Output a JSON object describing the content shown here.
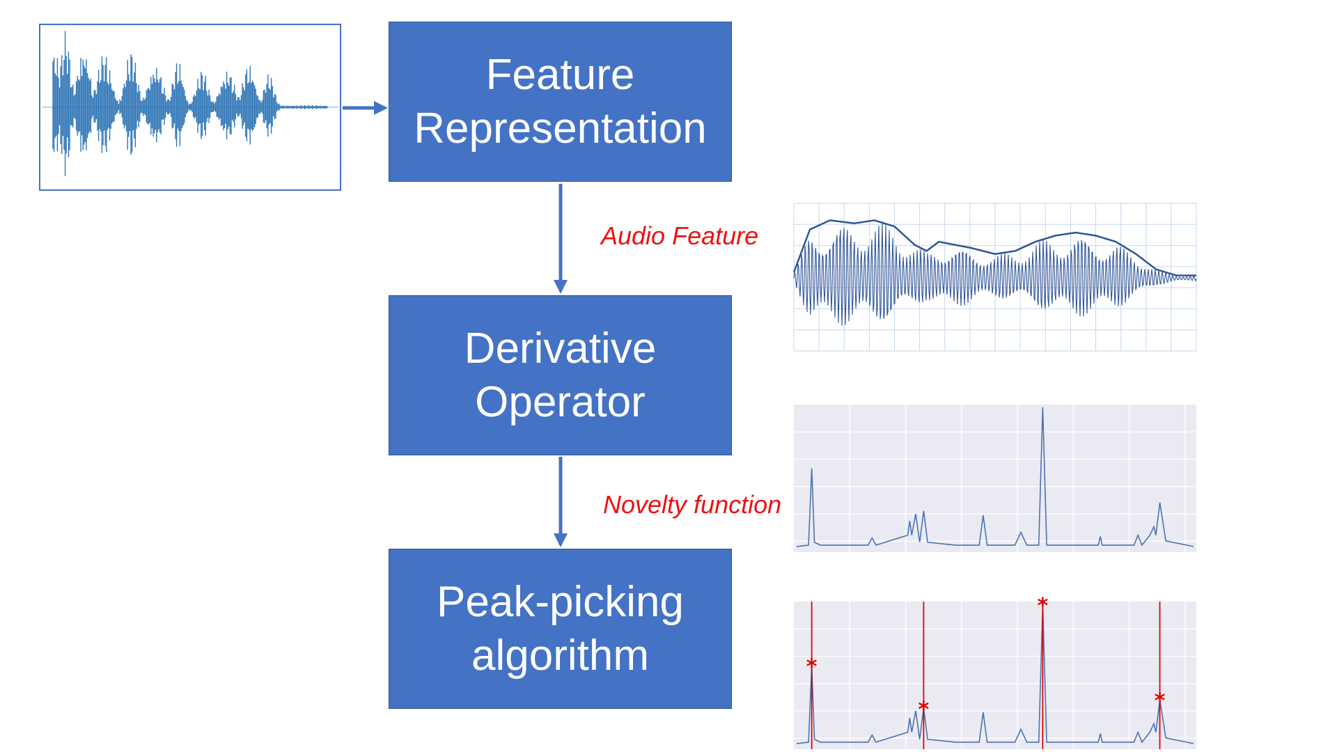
{
  "colors": {
    "box_fill": "#4472C4",
    "box_text": "#FFFFFF",
    "arrow": "#4472C4",
    "annotation": "#EE1111",
    "plot_background": "#EAEAF2",
    "plot_line": "#4C72B0",
    "onset_marker": "#E00000"
  },
  "input": {
    "icon": "audio-waveform-icon"
  },
  "blocks": [
    {
      "id": "feature-representation",
      "label": "Feature\nRepresentation"
    },
    {
      "id": "derivative-operator",
      "label": "Derivative\nOperator"
    },
    {
      "id": "peak-picking",
      "label": "Peak-picking\nalgorithm"
    }
  ],
  "annotations": {
    "audio_feature": "Audio Feature",
    "novelty_function": "Novelty function"
  },
  "chart_data": [
    {
      "type": "line",
      "x": [
        0,
        0.04,
        0.09,
        0.15,
        0.2,
        0.25,
        0.3,
        0.33,
        0.36,
        0.4,
        0.44,
        0.5,
        0.55,
        0.6,
        0.65,
        0.7,
        0.75,
        0.8,
        0.85,
        0.9,
        0.95,
        1.0
      ],
      "series": [
        {
          "values": [
            0.1,
            0.8,
            0.95,
            0.9,
            0.95,
            0.85,
            0.55,
            0.45,
            0.6,
            0.55,
            0.5,
            0.4,
            0.45,
            0.6,
            0.7,
            0.75,
            0.7,
            0.6,
            0.4,
            0.15,
            0.05,
            0.05
          ]
        }
      ],
      "grid": true
    },
    {
      "type": "line",
      "x": [
        0,
        0.03,
        0.038,
        0.045,
        0.06,
        0.1,
        0.18,
        0.19,
        0.2,
        0.28,
        0.285,
        0.29,
        0.3,
        0.31,
        0.32,
        0.33,
        0.4,
        0.46,
        0.47,
        0.48,
        0.55,
        0.565,
        0.58,
        0.61,
        0.62,
        0.63,
        0.66,
        0.76,
        0.765,
        0.77,
        0.85,
        0.86,
        0.87,
        0.89,
        0.9,
        0.905,
        0.915,
        0.93,
        1.0
      ],
      "series": [
        {
          "values": [
            0.02,
            0.03,
            0.57,
            0.05,
            0.03,
            0.03,
            0.03,
            0.08,
            0.03,
            0.1,
            0.2,
            0.1,
            0.25,
            0.05,
            0.27,
            0.05,
            0.03,
            0.03,
            0.24,
            0.03,
            0.03,
            0.12,
            0.03,
            0.03,
            1.0,
            0.03,
            0.03,
            0.03,
            0.09,
            0.03,
            0.03,
            0.1,
            0.03,
            0.1,
            0.16,
            0.1,
            0.33,
            0.06,
            0.02
          ]
        }
      ],
      "grid": true
    },
    {
      "type": "line",
      "x": [
        0,
        0.03,
        0.038,
        0.045,
        0.06,
        0.1,
        0.18,
        0.19,
        0.2,
        0.28,
        0.285,
        0.29,
        0.3,
        0.31,
        0.32,
        0.33,
        0.4,
        0.46,
        0.47,
        0.48,
        0.55,
        0.565,
        0.58,
        0.61,
        0.62,
        0.63,
        0.66,
        0.76,
        0.765,
        0.77,
        0.85,
        0.86,
        0.87,
        0.89,
        0.9,
        0.905,
        0.915,
        0.93,
        1.0
      ],
      "series": [
        {
          "values": [
            0.02,
            0.03,
            0.57,
            0.05,
            0.03,
            0.03,
            0.03,
            0.08,
            0.03,
            0.1,
            0.2,
            0.1,
            0.25,
            0.05,
            0.27,
            0.05,
            0.03,
            0.03,
            0.24,
            0.03,
            0.03,
            0.12,
            0.03,
            0.03,
            1.0,
            0.03,
            0.03,
            0.03,
            0.09,
            0.03,
            0.03,
            0.1,
            0.03,
            0.1,
            0.16,
            0.1,
            0.33,
            0.06,
            0.02
          ]
        }
      ],
      "onsets": [
        0.038,
        0.32,
        0.62,
        0.915
      ],
      "marker_label": "*",
      "grid": true
    }
  ]
}
